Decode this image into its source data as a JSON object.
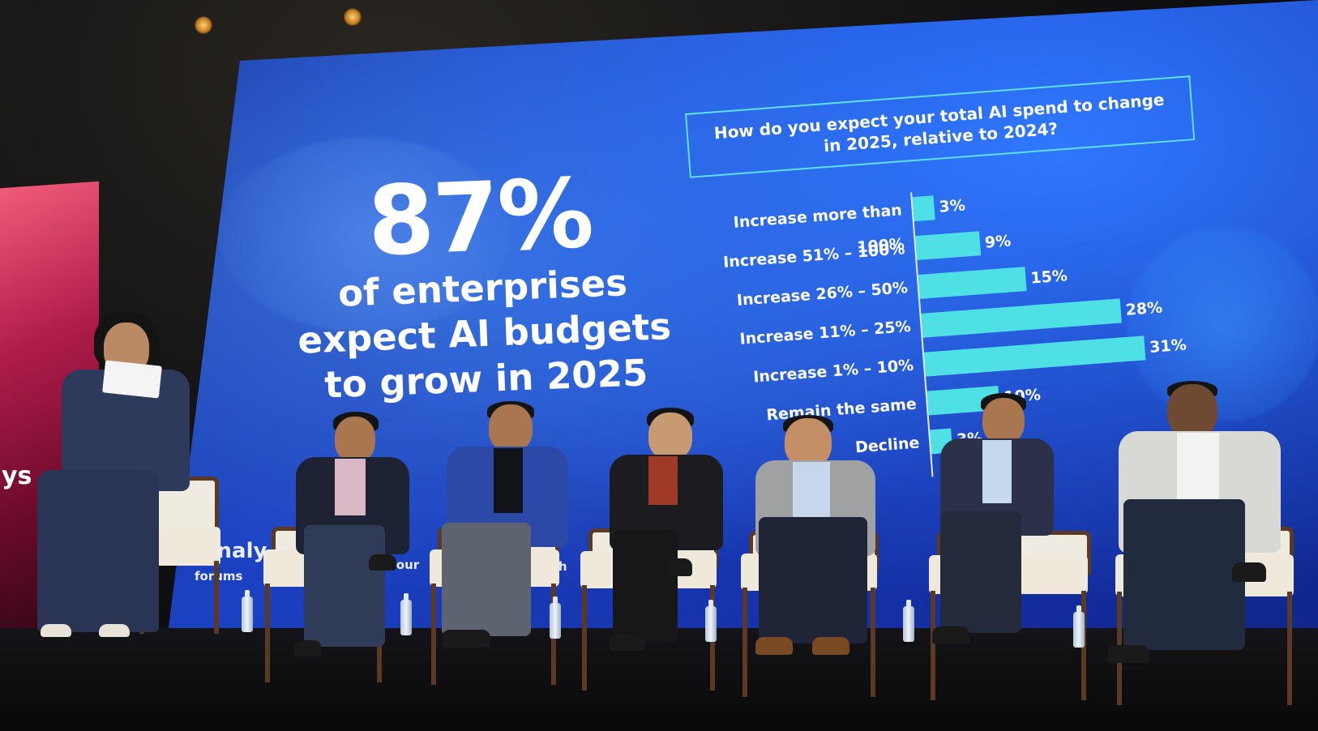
{
  "slide": {
    "big_stat": "87%",
    "stat_lines": [
      "of enterprises",
      "expect AI budgets",
      "to grow in 2025"
    ],
    "question": "How do you expect your total AI spend to change in 2025, relative to 2024?",
    "logo_text": "analy",
    "logo_subtext": "forums",
    "source_fragment": "Sour",
    "ch_fragment": "ch"
  },
  "left_screen": {
    "text": "ys"
  },
  "chart_data": {
    "type": "bar",
    "orientation": "horizontal",
    "title": "How do you expect your total AI spend to change in 2025, relative to 2024?",
    "categories": [
      "Increase more than 100%",
      "Increase 51% – 100%",
      "Increase 26% – 50%",
      "Increase 11% – 25%",
      "Increase 1% – 10%",
      "Remain the same",
      "Decline"
    ],
    "values": [
      3,
      9,
      15,
      28,
      31,
      10,
      3
    ],
    "value_labels": [
      "3%",
      "9%",
      "15%",
      "28%",
      "31%",
      "10%",
      "3%"
    ],
    "unit": "%",
    "xlim": [
      0,
      31
    ],
    "bar_color": "#4fe0e6",
    "grid": false,
    "legend": "none"
  },
  "colors": {
    "screen_blue": "#1b41c2",
    "bar_cyan": "#4fe0e6",
    "frame_cyan": "#5fe0f0",
    "text_white": "#ffffff"
  }
}
